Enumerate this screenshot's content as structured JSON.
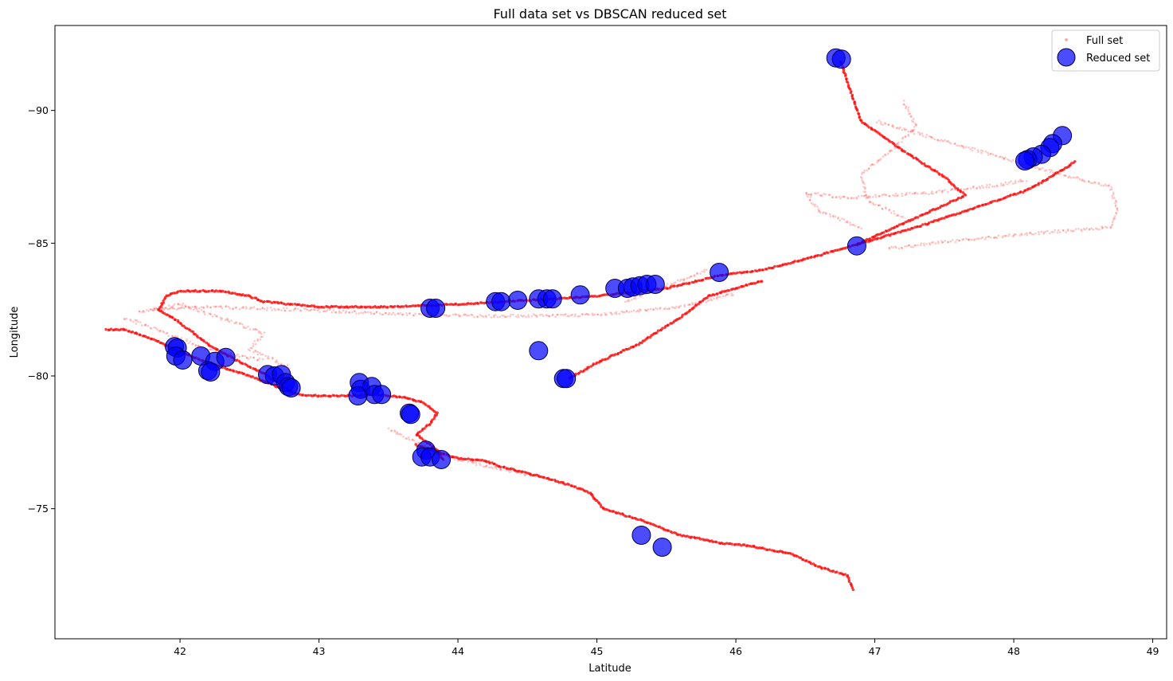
{
  "chart_data": {
    "type": "scatter",
    "title": "Full data set vs DBSCAN reduced set",
    "xlabel": "Latitude",
    "ylabel": "Longitude",
    "xlim": [
      41.1,
      49.1
    ],
    "ylim": [
      -70.1,
      -93.2
    ],
    "y_axis_inverted": true,
    "xticks": [
      42,
      43,
      44,
      45,
      46,
      47,
      48,
      49
    ],
    "yticks": [
      -90,
      -85,
      -80,
      -75
    ],
    "grid": false,
    "legend": {
      "position": "top-right",
      "entries": [
        "Full set",
        "Reduced set"
      ]
    },
    "colors": {
      "full_set": "#ff0000",
      "reduced_set": "#0000ff",
      "reduced_edge": "#000055"
    },
    "full_set_tracks": [
      {
        "emphasis": "strong",
        "points": [
          [
            41.47,
            -81.75
          ],
          [
            41.6,
            -81.75
          ],
          [
            41.8,
            -81.4
          ],
          [
            42.0,
            -80.9
          ],
          [
            42.2,
            -80.5
          ],
          [
            42.5,
            -80.0
          ],
          [
            42.7,
            -79.6
          ],
          [
            42.85,
            -79.3
          ],
          [
            43.0,
            -79.25
          ],
          [
            43.2,
            -79.25
          ],
          [
            43.4,
            -79.3
          ],
          [
            43.6,
            -79.2
          ],
          [
            43.75,
            -79.0
          ],
          [
            43.85,
            -78.6
          ],
          [
            43.8,
            -78.2
          ],
          [
            43.7,
            -77.8
          ],
          [
            43.75,
            -77.6
          ],
          [
            43.85,
            -77.2
          ],
          [
            43.9,
            -76.8
          ]
        ]
      },
      {
        "emphasis": "strong",
        "points": [
          [
            43.7,
            -77.4
          ],
          [
            44.0,
            -76.9
          ],
          [
            44.2,
            -76.8
          ],
          [
            44.3,
            -76.6
          ],
          [
            44.6,
            -76.2
          ],
          [
            44.8,
            -75.9
          ],
          [
            44.95,
            -75.6
          ],
          [
            45.05,
            -75.0
          ],
          [
            45.3,
            -74.6
          ],
          [
            45.6,
            -74.0
          ],
          [
            45.9,
            -73.7
          ],
          [
            46.1,
            -73.6
          ],
          [
            46.4,
            -73.3
          ],
          [
            46.6,
            -72.8
          ],
          [
            46.8,
            -72.5
          ],
          [
            46.85,
            -71.9
          ]
        ]
      },
      {
        "emphasis": "strong",
        "points": [
          [
            41.85,
            -82.5
          ],
          [
            42.0,
            -82.0
          ],
          [
            42.2,
            -81.2
          ],
          [
            42.4,
            -80.6
          ],
          [
            42.6,
            -80.1
          ],
          [
            42.8,
            -79.4
          ]
        ]
      },
      {
        "emphasis": "strong",
        "points": [
          [
            41.85,
            -82.5
          ],
          [
            41.9,
            -83.0
          ],
          [
            42.0,
            -83.2
          ],
          [
            42.3,
            -83.2
          ],
          [
            42.5,
            -83.0
          ],
          [
            42.6,
            -82.8
          ],
          [
            43.0,
            -82.6
          ],
          [
            43.5,
            -82.6
          ],
          [
            44.0,
            -82.7
          ],
          [
            44.5,
            -82.85
          ],
          [
            45.0,
            -83.0
          ],
          [
            45.5,
            -83.3
          ],
          [
            45.9,
            -83.8
          ],
          [
            46.2,
            -84.0
          ],
          [
            46.5,
            -84.4
          ],
          [
            46.87,
            -84.95
          ]
        ]
      },
      {
        "emphasis": "strong",
        "points": [
          [
            44.8,
            -79.9
          ],
          [
            45.0,
            -80.5
          ],
          [
            45.3,
            -81.2
          ],
          [
            45.6,
            -82.2
          ],
          [
            45.8,
            -83.0
          ],
          [
            46.2,
            -83.6
          ]
        ]
      },
      {
        "emphasis": "strong",
        "points": [
          [
            46.87,
            -84.95
          ],
          [
            47.1,
            -85.5
          ],
          [
            47.4,
            -86.2
          ],
          [
            47.65,
            -86.8
          ],
          [
            47.5,
            -87.5
          ],
          [
            47.2,
            -88.5
          ],
          [
            46.9,
            -89.6
          ],
          [
            46.75,
            -91.9
          ]
        ]
      },
      {
        "emphasis": "strong",
        "points": [
          [
            46.87,
            -84.95
          ],
          [
            47.3,
            -85.6
          ],
          [
            47.7,
            -86.3
          ],
          [
            48.1,
            -87.0
          ],
          [
            48.3,
            -87.6
          ],
          [
            48.45,
            -88.1
          ]
        ]
      },
      {
        "emphasis": "faint",
        "points": [
          [
            41.7,
            -82.4
          ],
          [
            42.0,
            -82.7
          ],
          [
            42.4,
            -82.0
          ],
          [
            42.6,
            -81.6
          ],
          [
            42.5,
            -81.0
          ],
          [
            42.8,
            -80.3
          ]
        ]
      },
      {
        "emphasis": "faint",
        "points": [
          [
            41.8,
            -82.5
          ],
          [
            42.2,
            -82.6
          ],
          [
            42.8,
            -82.5
          ],
          [
            43.5,
            -82.35
          ],
          [
            44.2,
            -82.25
          ],
          [
            45.0,
            -82.3
          ],
          [
            45.6,
            -82.6
          ],
          [
            46.0,
            -83.1
          ]
        ]
      },
      {
        "emphasis": "faint",
        "points": [
          [
            45.2,
            -82.8
          ],
          [
            45.4,
            -83.2
          ],
          [
            45.6,
            -83.6
          ],
          [
            45.8,
            -84.0
          ]
        ]
      },
      {
        "emphasis": "faint",
        "points": [
          [
            47.1,
            -84.8
          ],
          [
            47.6,
            -85.1
          ],
          [
            48.2,
            -85.4
          ],
          [
            48.7,
            -85.6
          ],
          [
            48.75,
            -86.2
          ],
          [
            48.7,
            -87.1
          ],
          [
            48.2,
            -87.8
          ],
          [
            47.6,
            -88.7
          ],
          [
            47.2,
            -89.3
          ],
          [
            47.0,
            -89.6
          ]
        ]
      },
      {
        "emphasis": "faint",
        "points": [
          [
            46.9,
            -85.6
          ],
          [
            46.6,
            -86.2
          ],
          [
            46.5,
            -86.9
          ],
          [
            46.8,
            -86.7
          ],
          [
            47.4,
            -86.9
          ],
          [
            47.9,
            -87.2
          ],
          [
            48.1,
            -87.4
          ]
        ]
      },
      {
        "emphasis": "faint",
        "points": [
          [
            47.2,
            -86.0
          ],
          [
            46.95,
            -86.6
          ],
          [
            46.9,
            -87.6
          ],
          [
            47.1,
            -88.4
          ],
          [
            47.3,
            -89.4
          ],
          [
            47.2,
            -90.4
          ]
        ]
      },
      {
        "emphasis": "faint",
        "points": [
          [
            43.5,
            -78.0
          ],
          [
            43.9,
            -77.0
          ],
          [
            44.2,
            -76.6
          ],
          [
            44.6,
            -76.2
          ]
        ]
      },
      {
        "emphasis": "faint",
        "points": [
          [
            41.6,
            -82.2
          ],
          [
            41.9,
            -81.6
          ],
          [
            42.2,
            -81.0
          ],
          [
            42.6,
            -80.6
          ]
        ]
      }
    ],
    "reduced_set": [
      [
        46.72,
        -91.98
      ],
      [
        46.76,
        -91.93
      ],
      [
        48.35,
        -89.05
      ],
      [
        48.28,
        -88.75
      ],
      [
        48.26,
        -88.6
      ],
      [
        48.2,
        -88.35
      ],
      [
        48.14,
        -88.25
      ],
      [
        48.1,
        -88.15
      ],
      [
        48.08,
        -88.1
      ],
      [
        46.87,
        -84.9
      ],
      [
        45.88,
        -83.9
      ],
      [
        45.13,
        -83.3
      ],
      [
        45.22,
        -83.3
      ],
      [
        45.26,
        -83.35
      ],
      [
        45.31,
        -83.4
      ],
      [
        45.36,
        -83.45
      ],
      [
        45.42,
        -83.45
      ],
      [
        44.88,
        -83.05
      ],
      [
        44.58,
        -82.9
      ],
      [
        44.64,
        -82.9
      ],
      [
        44.68,
        -82.9
      ],
      [
        44.43,
        -82.85
      ],
      [
        44.27,
        -82.8
      ],
      [
        44.31,
        -82.8
      ],
      [
        43.8,
        -82.55
      ],
      [
        43.84,
        -82.55
      ],
      [
        44.58,
        -80.95
      ],
      [
        44.76,
        -79.9
      ],
      [
        44.78,
        -79.9
      ],
      [
        41.96,
        -81.1
      ],
      [
        41.98,
        -81.05
      ],
      [
        41.97,
        -80.75
      ],
      [
        42.02,
        -80.6
      ],
      [
        42.15,
        -80.75
      ],
      [
        42.25,
        -80.55
      ],
      [
        42.33,
        -80.7
      ],
      [
        42.2,
        -80.2
      ],
      [
        42.22,
        -80.15
      ],
      [
        42.63,
        -80.05
      ],
      [
        42.68,
        -80.0
      ],
      [
        42.73,
        -80.05
      ],
      [
        42.76,
        -79.75
      ],
      [
        42.78,
        -79.6
      ],
      [
        42.8,
        -79.55
      ],
      [
        43.29,
        -79.75
      ],
      [
        43.3,
        -79.5
      ],
      [
        43.38,
        -79.6
      ],
      [
        43.4,
        -79.3
      ],
      [
        43.45,
        -79.3
      ],
      [
        43.28,
        -79.25
      ],
      [
        43.65,
        -78.6
      ],
      [
        43.66,
        -78.55
      ],
      [
        43.77,
        -77.2
      ],
      [
        43.74,
        -76.95
      ],
      [
        43.8,
        -76.95
      ],
      [
        43.88,
        -76.85
      ],
      [
        45.32,
        -74.0
      ],
      [
        45.47,
        -73.55
      ]
    ]
  }
}
